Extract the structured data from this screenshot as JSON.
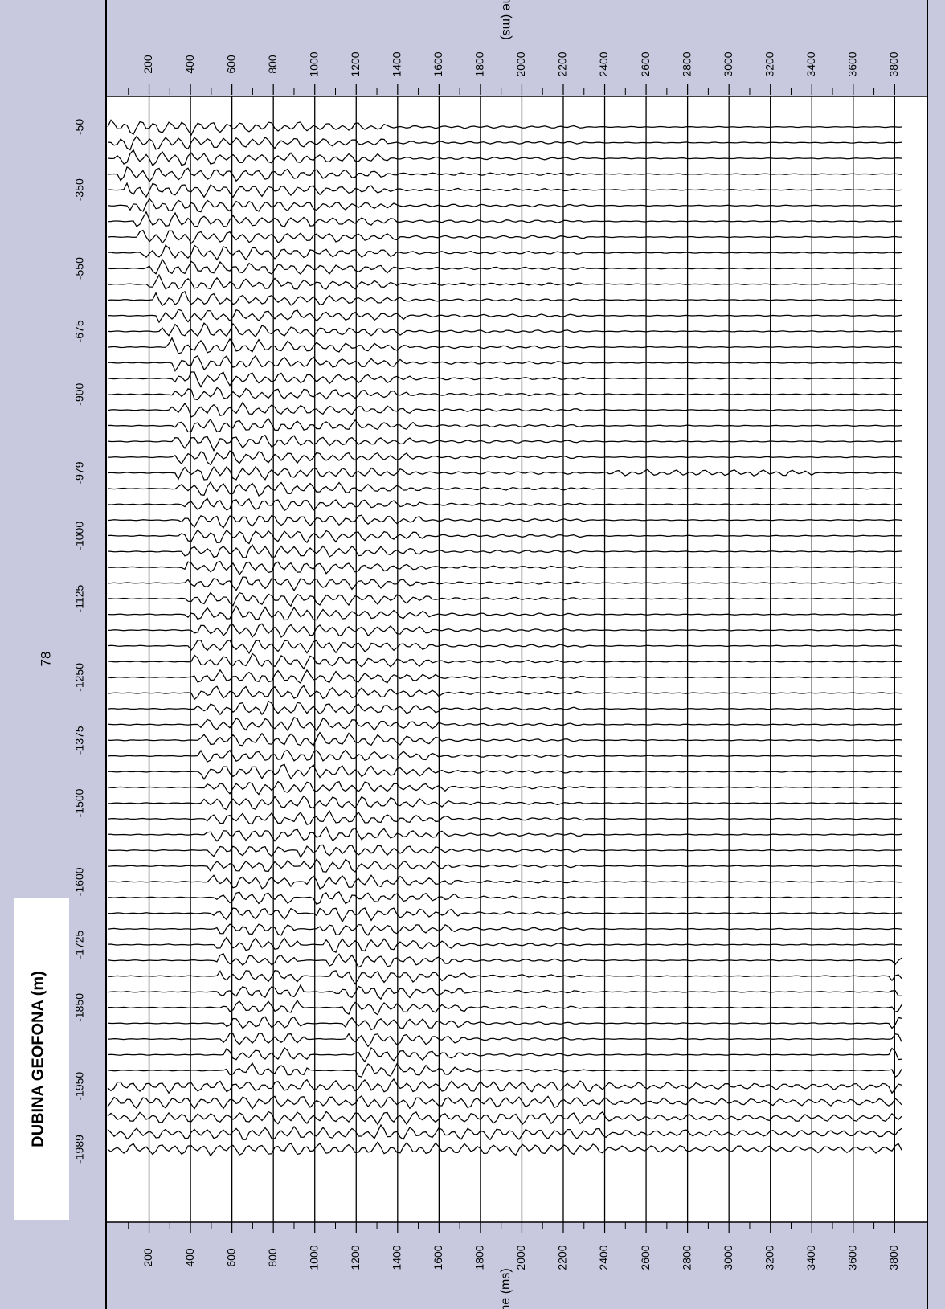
{
  "colors": {
    "frame_fill": "#c8c9de",
    "plot_fill": "#ffffff",
    "trace": "#000000"
  },
  "page": {
    "left_panel_label": "DUBINA GEOFONA (m)",
    "left_panel_number": "78"
  },
  "chart_data": {
    "type": "line",
    "title": "",
    "xlabel": "Time (ms)",
    "ylabel": "DUBINA GEOFONA (m)",
    "xlim": [
      0,
      3950
    ],
    "xticks": [
      200,
      400,
      600,
      800,
      1000,
      1200,
      1400,
      1600,
      1800,
      2000,
      2200,
      2400,
      2600,
      2800,
      3000,
      3200,
      3400,
      3600,
      3800
    ],
    "depth_labels": [
      "-50",
      "-350",
      "-550",
      "-675",
      "-900",
      "-979",
      "-1000",
      "-1125",
      "-1250",
      "-1375",
      "-1500",
      "-1600",
      "-1725",
      "-1850",
      "-1950",
      "-1989"
    ],
    "trace_count": 66,
    "grid": true,
    "series": [
      {
        "events": [
          {
            "depth_from": "-50",
            "t_start_ms": 0,
            "t_end_ms": 1350,
            "amplitude": 1.0
          },
          {
            "depth_from": "-900",
            "t_start_ms": 300,
            "t_end_ms": 1650,
            "amplitude": 1.0
          },
          {
            "depth_from": "-1850",
            "t_start_ms": 1300,
            "t_end_ms": 1800,
            "amplitude": 1.0
          },
          {
            "depth_from": "-979",
            "t_start_ms": 2400,
            "t_end_ms": 3400,
            "amplitude": 0.3
          },
          {
            "depth_from": "-1950",
            "t_start_ms": 0,
            "t_end_ms": 3900,
            "amplitude": 0.7
          }
        ]
      }
    ]
  }
}
